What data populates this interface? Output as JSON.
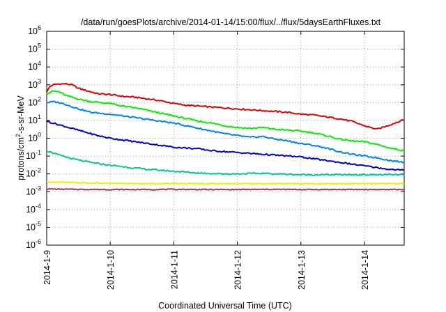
{
  "chart_data": {
    "type": "line",
    "title": "/data/run/goesPlots/archive/2014-01-14/15:00/flux/../flux/5daysEarthFluxes.txt",
    "xlabel": "Coordinated Universal Time (UTC)",
    "ylabel_parts": [
      "protons/cm",
      "2",
      "-s-sr-MeV"
    ],
    "y_scale": "log",
    "ylim_exponent": [
      -6,
      6
    ],
    "y_tick_base": "10",
    "y_tick_exponents": [
      "6",
      "5",
      "4",
      "3",
      "2",
      "1",
      "0",
      "-1",
      "-2",
      "-3",
      "-4",
      "-5",
      "-6"
    ],
    "xlim_days": [
      "2014-1-9",
      "2014-1-14 15:00"
    ],
    "x_ticks": [
      "2014-1-9",
      "2014-1-10",
      "2014-1-11",
      "2014-1-12",
      "2014-1-13",
      "2014-1-14"
    ],
    "grid": true,
    "series": [
      {
        "color": "#dd0000",
        "x_days": [
          0,
          0.05,
          0.1,
          0.2,
          0.3,
          0.4,
          0.5,
          0.6,
          0.7,
          0.8,
          1.0,
          1.2,
          1.4,
          1.6,
          1.8,
          2.0,
          2.2,
          2.4,
          2.6,
          2.8,
          3.0,
          3.2,
          3.4,
          3.6,
          3.8,
          4.0,
          4.2,
          4.4,
          4.6,
          4.8,
          5.0,
          5.2,
          5.4,
          5.625
        ],
        "log10_values": [
          2.6,
          2.9,
          3.0,
          3.05,
          3.05,
          3.0,
          2.8,
          2.7,
          2.6,
          2.5,
          2.45,
          2.35,
          2.3,
          2.2,
          2.1,
          1.95,
          1.85,
          1.8,
          1.75,
          1.7,
          1.65,
          1.6,
          1.55,
          1.5,
          1.45,
          1.35,
          1.3,
          1.2,
          1.1,
          0.95,
          0.7,
          0.5,
          0.75,
          1.05
        ]
      },
      {
        "color": "#00ee00",
        "x_days": [
          0,
          0.1,
          0.2,
          0.3,
          0.5,
          0.7,
          1.0,
          1.2,
          1.4,
          1.6,
          1.8,
          2.0,
          2.2,
          2.4,
          2.6,
          2.8,
          3.0,
          3.2,
          3.4,
          3.6,
          3.8,
          4.0,
          4.2,
          4.4,
          4.6,
          4.8,
          5.0,
          5.2,
          5.4,
          5.625
        ],
        "log10_values": [
          2.5,
          2.65,
          2.6,
          2.4,
          2.2,
          2.05,
          1.95,
          1.8,
          1.7,
          1.55,
          1.4,
          1.25,
          1.1,
          0.95,
          0.85,
          0.7,
          0.6,
          0.55,
          0.6,
          0.5,
          0.45,
          0.4,
          0.3,
          0.15,
          -0.05,
          -0.15,
          -0.2,
          -0.35,
          -0.55,
          -0.7
        ]
      },
      {
        "color": "#0080ff",
        "x_days": [
          0,
          0.1,
          0.2,
          0.3,
          0.5,
          0.7,
          1.0,
          1.2,
          1.4,
          1.6,
          1.8,
          2.0,
          2.2,
          2.4,
          2.6,
          2.8,
          3.0,
          3.2,
          3.4,
          3.6,
          3.8,
          4.0,
          4.2,
          4.4,
          4.6,
          4.8,
          5.0,
          5.2,
          5.4,
          5.625
        ],
        "log10_values": [
          2.0,
          2.05,
          2.0,
          1.9,
          1.65,
          1.45,
          1.35,
          1.25,
          1.15,
          1.05,
          0.95,
          0.85,
          0.7,
          0.55,
          0.4,
          0.25,
          0.15,
          0.05,
          0.1,
          -0.05,
          -0.15,
          -0.3,
          -0.4,
          -0.55,
          -0.75,
          -0.9,
          -1.0,
          -1.1,
          -1.25,
          -1.35
        ]
      },
      {
        "color": "#0000cc",
        "x_days": [
          0,
          0.2,
          0.4,
          0.6,
          0.8,
          1.0,
          1.2,
          1.4,
          1.6,
          1.8,
          2.0,
          2.2,
          2.4,
          2.6,
          2.8,
          3.0,
          3.2,
          3.4,
          3.6,
          3.8,
          4.0,
          4.2,
          4.4,
          4.6,
          4.8,
          5.0,
          5.2,
          5.4,
          5.625
        ],
        "log10_values": [
          0.95,
          0.75,
          0.55,
          0.35,
          0.15,
          0.0,
          -0.1,
          -0.2,
          -0.3,
          -0.4,
          -0.5,
          -0.55,
          -0.6,
          -0.7,
          -0.75,
          -0.8,
          -0.85,
          -0.9,
          -0.95,
          -1.0,
          -1.05,
          -1.15,
          -1.25,
          -1.35,
          -1.45,
          -1.55,
          -1.65,
          -1.75,
          -1.8
        ]
      },
      {
        "color": "#00c890",
        "x_days": [
          0,
          0.2,
          0.4,
          0.6,
          0.8,
          1.0,
          1.2,
          1.4,
          1.6,
          1.8,
          2.0,
          2.2,
          2.4,
          2.6,
          2.8,
          3.0,
          3.2,
          3.4,
          3.6,
          3.8,
          4.0,
          4.2,
          4.4,
          4.6,
          4.8,
          5.0,
          5.2,
          5.4,
          5.625
        ],
        "log10_values": [
          -0.7,
          -0.95,
          -1.15,
          -1.3,
          -1.42,
          -1.52,
          -1.6,
          -1.68,
          -1.75,
          -1.8,
          -1.85,
          -1.9,
          -1.95,
          -1.98,
          -2.0,
          -2.0,
          -1.98,
          -1.97,
          -2.0,
          -2.02,
          -2.05,
          -2.05,
          -2.05,
          -2.05,
          -2.05,
          -2.05,
          -2.05,
          -2.05,
          -2.05
        ]
      },
      {
        "color": "#f0f000",
        "x_days": [
          0,
          0.5,
          1.0,
          1.5,
          2.0,
          2.5,
          3.0,
          3.5,
          4.0,
          4.5,
          5.0,
          5.625
        ],
        "log10_values": [
          -2.45,
          -2.5,
          -2.53,
          -2.55,
          -2.55,
          -2.55,
          -2.55,
          -2.55,
          -2.55,
          -2.55,
          -2.55,
          -2.55
        ]
      },
      {
        "color": "#993366",
        "x_days": [
          0,
          0.5,
          1.0,
          1.5,
          2.0,
          2.5,
          3.0,
          3.5,
          4.0,
          4.5,
          5.0,
          5.625
        ],
        "log10_values": [
          -2.85,
          -2.87,
          -2.88,
          -2.88,
          -2.87,
          -2.88,
          -2.88,
          -2.87,
          -2.88,
          -2.88,
          -2.88,
          -2.88
        ]
      }
    ]
  }
}
